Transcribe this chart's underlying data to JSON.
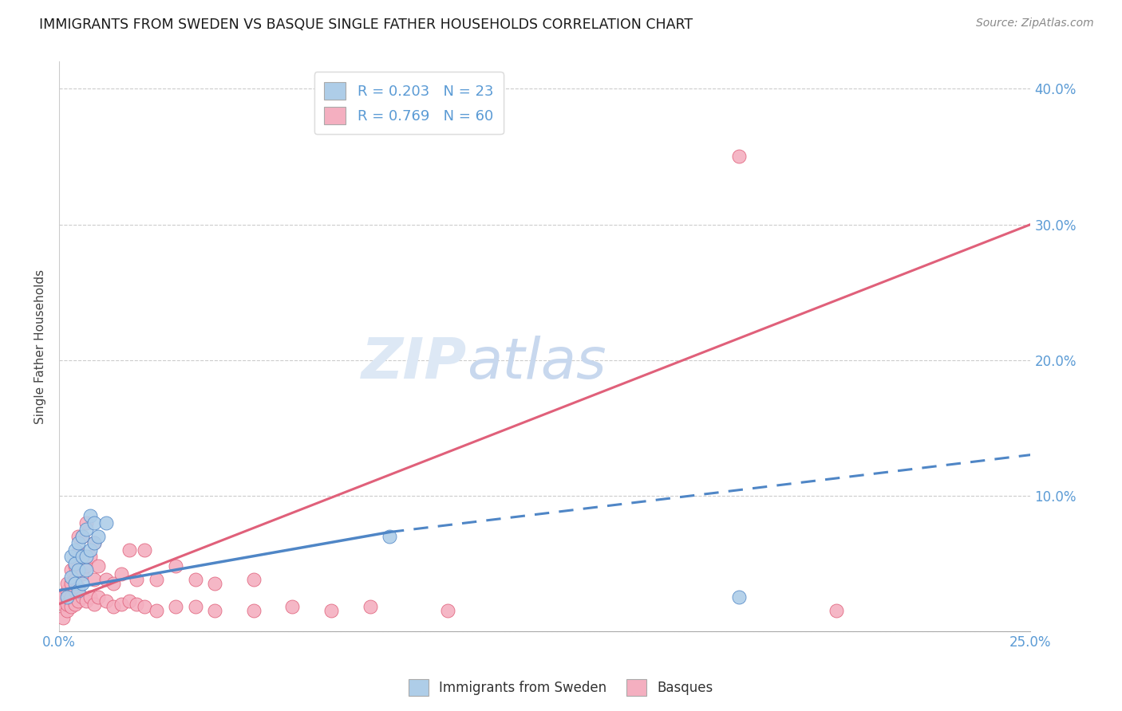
{
  "title": "IMMIGRANTS FROM SWEDEN VS BASQUE SINGLE FATHER HOUSEHOLDS CORRELATION CHART",
  "source": "Source: ZipAtlas.com",
  "ylabel": "Single Father Households",
  "xlim": [
    0.0,
    0.25
  ],
  "ylim": [
    0.0,
    0.42
  ],
  "yticks": [
    0.0,
    0.1,
    0.2,
    0.3,
    0.4
  ],
  "ytick_labels": [
    "",
    "10.0%",
    "20.0%",
    "30.0%",
    "40.0%"
  ],
  "xticks": [
    0.0,
    0.05,
    0.1,
    0.15,
    0.2,
    0.25
  ],
  "xtick_labels": [
    "0.0%",
    "",
    "",
    "",
    "",
    "25.0%"
  ],
  "legend_blue_r": "0.203",
  "legend_blue_n": "23",
  "legend_pink_r": "0.769",
  "legend_pink_n": "60",
  "legend_label_blue": "Immigrants from Sweden",
  "legend_label_pink": "Basques",
  "blue_color": "#aecde8",
  "pink_color": "#f4afc0",
  "blue_line_color": "#4f86c6",
  "pink_line_color": "#e0607a",
  "watermark_zip": "ZIP",
  "watermark_atlas": "atlas",
  "watermark_color_zip": "#dde8f5",
  "watermark_color_atlas": "#c8d8ee",
  "blue_scatter": [
    [
      0.002,
      0.025
    ],
    [
      0.003,
      0.04
    ],
    [
      0.003,
      0.055
    ],
    [
      0.004,
      0.035
    ],
    [
      0.004,
      0.05
    ],
    [
      0.004,
      0.06
    ],
    [
      0.005,
      0.03
    ],
    [
      0.005,
      0.045
    ],
    [
      0.005,
      0.065
    ],
    [
      0.006,
      0.035
    ],
    [
      0.006,
      0.055
    ],
    [
      0.006,
      0.07
    ],
    [
      0.007,
      0.045
    ],
    [
      0.007,
      0.055
    ],
    [
      0.007,
      0.075
    ],
    [
      0.008,
      0.06
    ],
    [
      0.008,
      0.085
    ],
    [
      0.009,
      0.065
    ],
    [
      0.009,
      0.08
    ],
    [
      0.01,
      0.07
    ],
    [
      0.012,
      0.08
    ],
    [
      0.085,
      0.07
    ],
    [
      0.175,
      0.025
    ]
  ],
  "pink_scatter": [
    [
      0.001,
      0.01
    ],
    [
      0.001,
      0.02
    ],
    [
      0.001,
      0.025
    ],
    [
      0.002,
      0.015
    ],
    [
      0.002,
      0.02
    ],
    [
      0.002,
      0.03
    ],
    [
      0.002,
      0.035
    ],
    [
      0.003,
      0.018
    ],
    [
      0.003,
      0.025
    ],
    [
      0.003,
      0.035
    ],
    [
      0.003,
      0.045
    ],
    [
      0.004,
      0.02
    ],
    [
      0.004,
      0.03
    ],
    [
      0.004,
      0.038
    ],
    [
      0.004,
      0.048
    ],
    [
      0.005,
      0.022
    ],
    [
      0.005,
      0.032
    ],
    [
      0.005,
      0.058
    ],
    [
      0.005,
      0.07
    ],
    [
      0.006,
      0.025
    ],
    [
      0.006,
      0.042
    ],
    [
      0.006,
      0.07
    ],
    [
      0.007,
      0.022
    ],
    [
      0.007,
      0.048
    ],
    [
      0.007,
      0.08
    ],
    [
      0.008,
      0.025
    ],
    [
      0.008,
      0.055
    ],
    [
      0.009,
      0.02
    ],
    [
      0.009,
      0.038
    ],
    [
      0.009,
      0.065
    ],
    [
      0.01,
      0.025
    ],
    [
      0.01,
      0.048
    ],
    [
      0.012,
      0.022
    ],
    [
      0.012,
      0.038
    ],
    [
      0.014,
      0.018
    ],
    [
      0.014,
      0.035
    ],
    [
      0.016,
      0.02
    ],
    [
      0.016,
      0.042
    ],
    [
      0.018,
      0.022
    ],
    [
      0.018,
      0.06
    ],
    [
      0.02,
      0.02
    ],
    [
      0.02,
      0.038
    ],
    [
      0.022,
      0.018
    ],
    [
      0.022,
      0.06
    ],
    [
      0.025,
      0.015
    ],
    [
      0.025,
      0.038
    ],
    [
      0.03,
      0.018
    ],
    [
      0.03,
      0.048
    ],
    [
      0.035,
      0.018
    ],
    [
      0.035,
      0.038
    ],
    [
      0.04,
      0.015
    ],
    [
      0.04,
      0.035
    ],
    [
      0.05,
      0.015
    ],
    [
      0.05,
      0.038
    ],
    [
      0.06,
      0.018
    ],
    [
      0.07,
      0.015
    ],
    [
      0.08,
      0.018
    ],
    [
      0.1,
      0.015
    ],
    [
      0.175,
      0.35
    ],
    [
      0.2,
      0.015
    ]
  ],
  "blue_trendline_solid": [
    [
      0.0,
      0.03
    ],
    [
      0.085,
      0.073
    ]
  ],
  "blue_trendline_dashed": [
    [
      0.085,
      0.073
    ],
    [
      0.25,
      0.13
    ]
  ],
  "pink_trendline": [
    [
      0.0,
      0.02
    ],
    [
      0.25,
      0.3
    ]
  ]
}
